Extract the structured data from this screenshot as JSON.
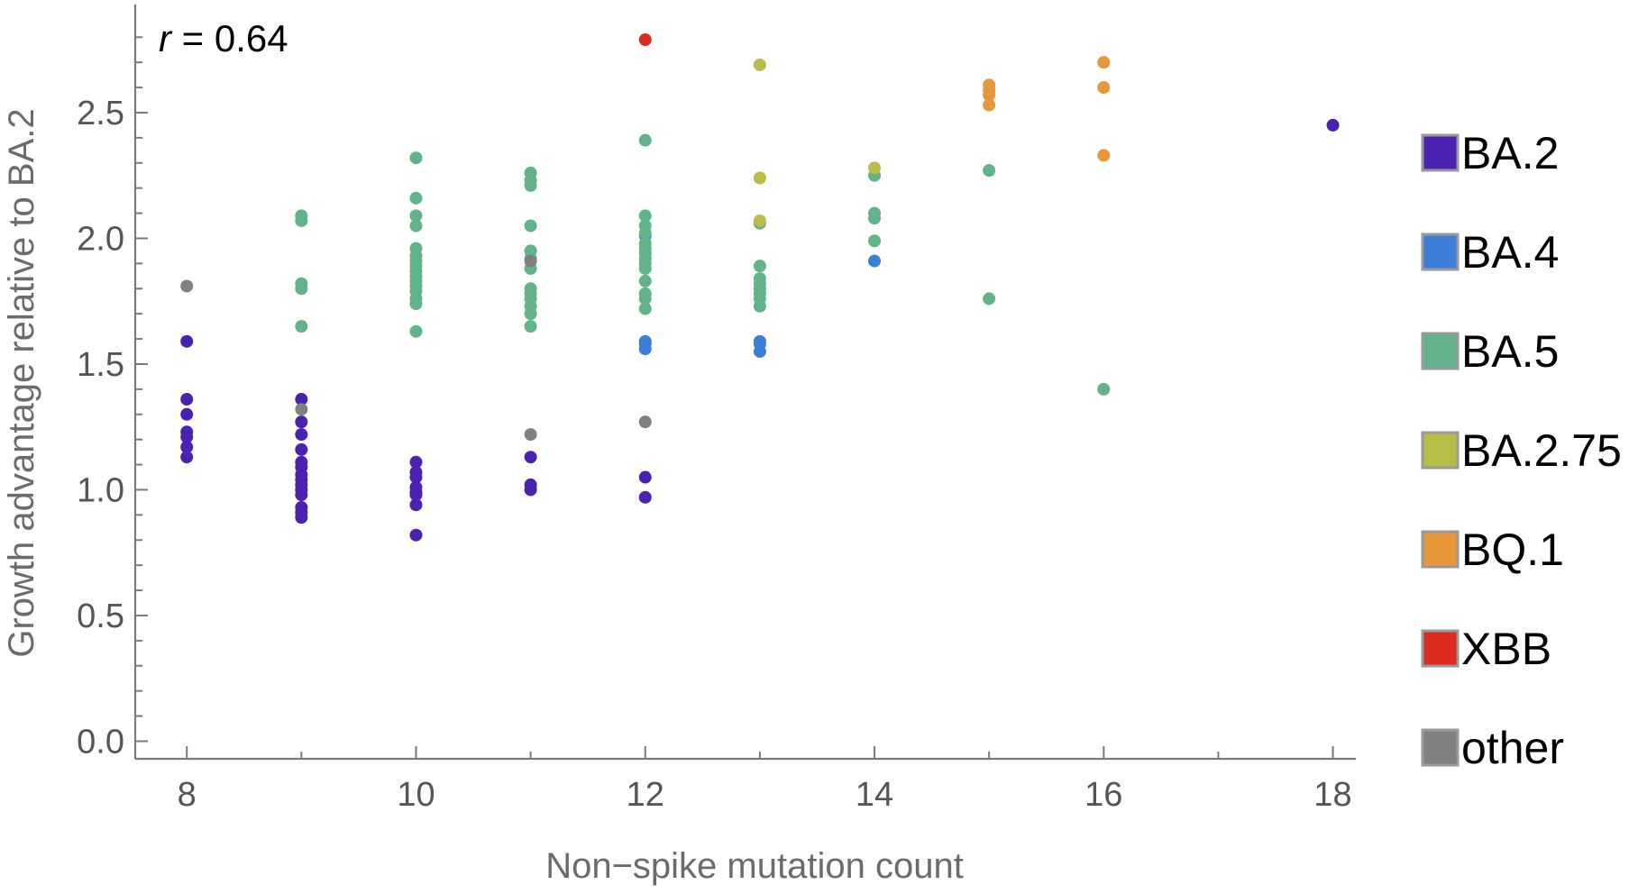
{
  "chart_data": {
    "type": "scatter",
    "title": "",
    "xlabel": "Non−spike mutation count",
    "ylabel": "Growth advantage relative to BA.2",
    "xlim": [
      7.55,
      18.2
    ],
    "ylim": [
      -0.07,
      2.93
    ],
    "x_ticks": [
      8,
      10,
      12,
      14,
      16,
      18
    ],
    "x_tick_labels": [
      "8",
      "10",
      "12",
      "14",
      "16",
      "18"
    ],
    "y_ticks": [
      0.0,
      0.5,
      1.0,
      1.5,
      2.0,
      2.5
    ],
    "y_tick_labels": [
      "0.0",
      "0.5",
      "1.0",
      "1.5",
      "2.0",
      "2.5"
    ],
    "grid": false,
    "legend_position": "right",
    "annotation": {
      "symbol": "r",
      "text": " = 0.64"
    },
    "series": [
      {
        "name": "BA.2",
        "color": "#4b22b0",
        "points": [
          [
            8,
            1.59
          ],
          [
            8,
            1.36
          ],
          [
            8,
            1.3
          ],
          [
            8,
            1.23
          ],
          [
            8,
            1.21
          ],
          [
            8,
            1.17
          ],
          [
            8,
            1.13
          ],
          [
            9,
            1.36
          ],
          [
            9,
            1.27
          ],
          [
            9,
            1.22
          ],
          [
            9,
            1.16
          ],
          [
            9,
            1.11
          ],
          [
            9,
            1.09
          ],
          [
            9,
            1.06
          ],
          [
            9,
            1.04
          ],
          [
            9,
            1.02
          ],
          [
            9,
            1.0
          ],
          [
            9,
            0.98
          ],
          [
            9,
            0.93
          ],
          [
            9,
            0.91
          ],
          [
            9,
            0.89
          ],
          [
            10,
            1.11
          ],
          [
            10,
            1.07
          ],
          [
            10,
            1.05
          ],
          [
            10,
            1.01
          ],
          [
            10,
            0.99
          ],
          [
            10,
            0.98
          ],
          [
            10,
            0.94
          ],
          [
            10,
            0.82
          ],
          [
            11,
            1.13
          ],
          [
            11,
            1.02
          ],
          [
            11,
            1.0
          ],
          [
            12,
            1.05
          ],
          [
            12,
            0.97
          ],
          [
            18,
            2.45
          ]
        ]
      },
      {
        "name": "BA.4",
        "color": "#3d7fd6",
        "points": [
          [
            12,
            2.01
          ],
          [
            12,
            1.59
          ],
          [
            12,
            1.58
          ],
          [
            12,
            1.56
          ],
          [
            13,
            1.59
          ],
          [
            13,
            1.58
          ],
          [
            13,
            1.55
          ],
          [
            14,
            1.91
          ]
        ]
      },
      {
        "name": "BA.5",
        "color": "#62b38a",
        "points": [
          [
            9,
            2.09
          ],
          [
            9,
            2.07
          ],
          [
            9,
            1.82
          ],
          [
            9,
            1.8
          ],
          [
            9,
            1.65
          ],
          [
            10,
            2.32
          ],
          [
            10,
            2.16
          ],
          [
            10,
            2.09
          ],
          [
            10,
            2.05
          ],
          [
            10,
            1.96
          ],
          [
            10,
            1.93
          ],
          [
            10,
            1.91
          ],
          [
            10,
            1.89
          ],
          [
            10,
            1.87
          ],
          [
            10,
            1.85
          ],
          [
            10,
            1.83
          ],
          [
            10,
            1.81
          ],
          [
            10,
            1.79
          ],
          [
            10,
            1.76
          ],
          [
            10,
            1.74
          ],
          [
            10,
            1.63
          ],
          [
            11,
            2.26
          ],
          [
            11,
            2.23
          ],
          [
            11,
            2.21
          ],
          [
            11,
            2.05
          ],
          [
            11,
            1.95
          ],
          [
            11,
            1.92
          ],
          [
            11,
            1.88
          ],
          [
            11,
            1.8
          ],
          [
            11,
            1.78
          ],
          [
            11,
            1.76
          ],
          [
            11,
            1.73
          ],
          [
            11,
            1.7
          ],
          [
            11,
            1.65
          ],
          [
            12,
            2.39
          ],
          [
            12,
            2.09
          ],
          [
            12,
            2.05
          ],
          [
            12,
            2.02
          ],
          [
            12,
            1.98
          ],
          [
            12,
            1.96
          ],
          [
            12,
            1.94
          ],
          [
            12,
            1.92
          ],
          [
            12,
            1.9
          ],
          [
            12,
            1.88
          ],
          [
            12,
            1.83
          ],
          [
            12,
            1.78
          ],
          [
            12,
            1.76
          ],
          [
            12,
            1.72
          ],
          [
            13,
            2.06
          ],
          [
            13,
            1.89
          ],
          [
            13,
            1.84
          ],
          [
            13,
            1.82
          ],
          [
            13,
            1.8
          ],
          [
            13,
            1.78
          ],
          [
            13,
            1.76
          ],
          [
            13,
            1.73
          ],
          [
            14,
            2.25
          ],
          [
            14,
            2.1
          ],
          [
            14,
            2.08
          ],
          [
            14,
            1.99
          ],
          [
            15,
            2.27
          ],
          [
            15,
            1.76
          ],
          [
            16,
            1.4
          ]
        ]
      },
      {
        "name": "BA.2.75",
        "color": "#b8bd45",
        "points": [
          [
            13,
            2.69
          ],
          [
            13,
            2.24
          ],
          [
            13,
            2.07
          ],
          [
            14,
            2.28
          ]
        ]
      },
      {
        "name": "BQ.1",
        "color": "#e8983a",
        "points": [
          [
            15,
            2.61
          ],
          [
            15,
            2.59
          ],
          [
            15,
            2.57
          ],
          [
            15,
            2.53
          ],
          [
            16,
            2.7
          ],
          [
            16,
            2.6
          ],
          [
            16,
            2.33
          ]
        ]
      },
      {
        "name": "XBB",
        "color": "#dd2b22",
        "points": [
          [
            12,
            2.79
          ]
        ]
      },
      {
        "name": "other",
        "color": "#808080",
        "points": [
          [
            8,
            1.81
          ],
          [
            9,
            1.32
          ],
          [
            11,
            1.91
          ],
          [
            11,
            1.22
          ],
          [
            12,
            1.27
          ]
        ]
      }
    ]
  }
}
